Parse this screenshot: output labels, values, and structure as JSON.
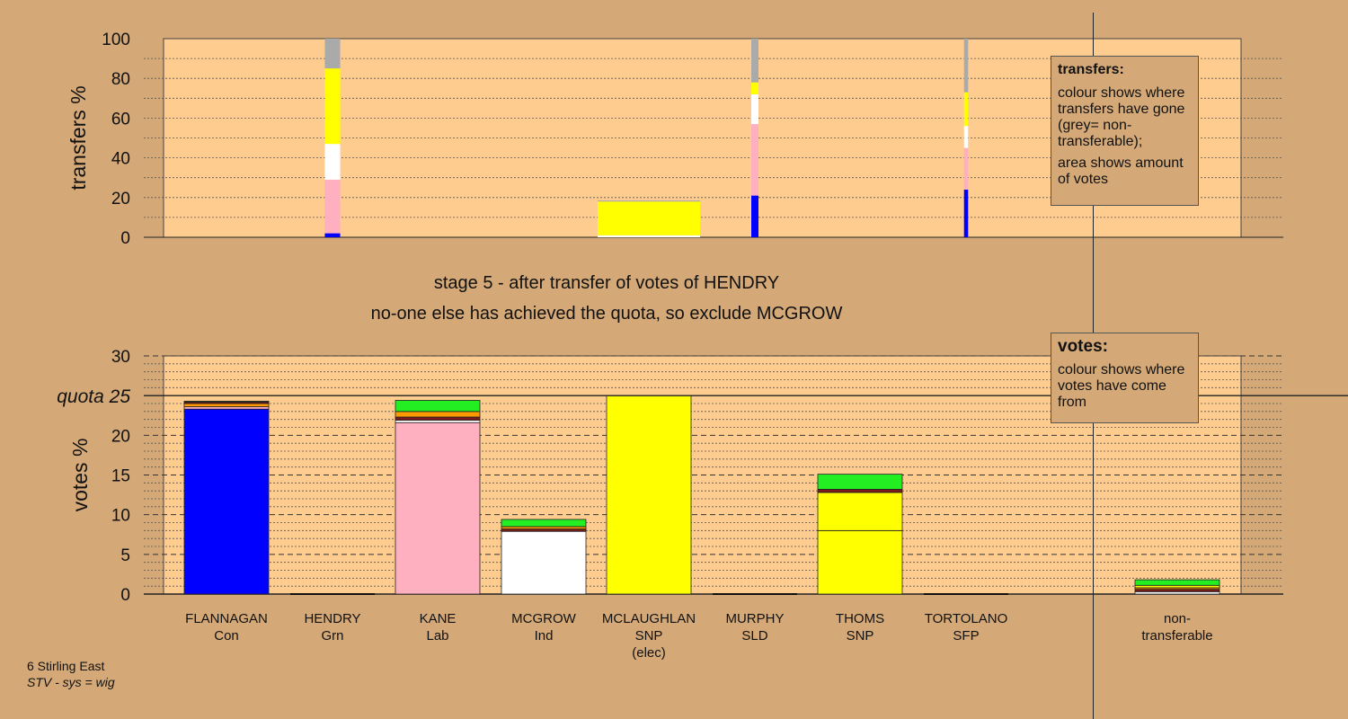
{
  "top_chart": {
    "ylabel": "transfers %",
    "yticks": [
      0,
      20,
      40,
      60,
      80,
      100
    ]
  },
  "bottom_chart": {
    "ylabel": "votes %",
    "yticks": [
      0,
      5,
      10,
      15,
      20,
      25,
      30
    ],
    "quota_label": "quota"
  },
  "titles": {
    "stage": "stage 5 - after transfer of votes of HENDRY",
    "action": "no-one else has achieved the quota, so exclude MCGROW"
  },
  "legend_transfers": {
    "heading": "transfers:",
    "line1": "colour shows where transfers have gone (grey= non-transferable);",
    "line2": "area shows amount of votes"
  },
  "legend_votes": {
    "heading": "votes:",
    "line1": "colour shows where votes have come from"
  },
  "candidates": [
    {
      "name": "FLANNAGAN",
      "party": "Con",
      "note": ""
    },
    {
      "name": "HENDRY",
      "party": "Grn",
      "note": ""
    },
    {
      "name": "KANE",
      "party": "Lab",
      "note": ""
    },
    {
      "name": "MCGROW",
      "party": "Ind",
      "note": ""
    },
    {
      "name": "MCLAUGHLAN",
      "party": "SNP",
      "note": "(elec)"
    },
    {
      "name": "MURPHY",
      "party": "SLD",
      "note": ""
    },
    {
      "name": "THOMS",
      "party": "SNP",
      "note": ""
    },
    {
      "name": "TORTOLANO",
      "party": "SFP",
      "note": ""
    },
    {
      "name": "non-",
      "party": "transferable",
      "note": ""
    }
  ],
  "footer": {
    "ward": "6 Stirling East",
    "system": "STV - sys = wig"
  },
  "colors": {
    "background": "#d4a977",
    "plot": "#ffcc90",
    "Con": "#0000ff",
    "Lab": "#ffb0c0",
    "Ind": "#ffffff",
    "SNP": "#ffff00",
    "Grn": "#22ee22",
    "SLD": "#ff9900",
    "SFP": "#7a1a1a",
    "nontransferable": "#aaaaaa"
  },
  "chart_data": [
    {
      "type": "bar",
      "title": "",
      "ylabel": "transfers %",
      "ylim": [
        0,
        100
      ],
      "grid": true,
      "series": [
        {
          "name": "FLANNAGAN",
          "values": [
            2,
            27,
            18,
            38,
            15
          ]
        },
        {
          "name": "KANE",
          "values": [
            0,
            0,
            0,
            0,
            0
          ]
        }
      ],
      "transfer_bars": [
        {
          "candidate_index": 1,
          "width_share": 0.15,
          "segments": [
            {
              "color": "Con",
              "value": 2
            },
            {
              "color": "Lab",
              "value": 27
            },
            {
              "color": "Ind",
              "value": 18
            },
            {
              "color": "SNP",
              "value": 38
            },
            {
              "color": "nontransferable",
              "value": 15
            }
          ]
        },
        {
          "candidate_index": 4,
          "width_share": 1.0,
          "segments": [
            {
              "color": "Ind",
              "value": 1
            },
            {
              "color": "SNP",
              "value": 17
            },
            {
              "color": "nontransferable",
              "value": 0.5
            }
          ]
        },
        {
          "candidate_index": 5,
          "width_share": 0.07,
          "segments": [
            {
              "color": "Con",
              "value": 21
            },
            {
              "color": "Lab",
              "value": 36
            },
            {
              "color": "Ind",
              "value": 15
            },
            {
              "color": "SNP",
              "value": 6
            },
            {
              "color": "nontransferable",
              "value": 22
            }
          ]
        },
        {
          "candidate_index": 7,
          "width_share": 0.04,
          "segments": [
            {
              "color": "Con",
              "value": 24
            },
            {
              "color": "Lab",
              "value": 21
            },
            {
              "color": "Ind",
              "value": 11
            },
            {
              "color": "SNP",
              "value": 17
            },
            {
              "color": "nontransferable",
              "value": 27
            }
          ]
        }
      ]
    },
    {
      "type": "bar",
      "title": "",
      "ylabel": "votes %",
      "ylim": [
        0,
        30
      ],
      "quota": 25,
      "grid": true,
      "categories": [
        "FLANNAGAN",
        "HENDRY",
        "KANE",
        "MCGROW",
        "MCLAUGHLAN",
        "MURPHY",
        "THOMS",
        "TORTOLANO",
        "non-transferable"
      ],
      "stacks": [
        [
          {
            "color": "Con",
            "value": 23.3
          },
          {
            "color": "Lab",
            "value": 0.3
          },
          {
            "color": "SLD",
            "value": 0.4
          },
          {
            "color": "SFP",
            "value": 0.2
          },
          {
            "color": "Grn",
            "value": 0.1
          }
        ],
        [],
        [
          {
            "color": "Lab",
            "value": 21.6
          },
          {
            "color": "Ind",
            "value": 0.3
          },
          {
            "color": "SFP",
            "value": 0.4
          },
          {
            "color": "SLD",
            "value": 0.7
          },
          {
            "color": "Grn",
            "value": 1.4
          }
        ],
        [
          {
            "color": "Ind",
            "value": 7.9
          },
          {
            "color": "SFP",
            "value": 0.3
          },
          {
            "color": "SLD",
            "value": 0.3
          },
          {
            "color": "Grn",
            "value": 0.9
          }
        ],
        [
          {
            "color": "SNP",
            "value": 25.0
          }
        ],
        [],
        [
          {
            "color": "SNP",
            "value": 8.0
          },
          {
            "color": "SNP",
            "value": 4.8
          },
          {
            "color": "SFP",
            "value": 0.4
          },
          {
            "color": "Grn",
            "value": 1.9
          }
        ],
        [],
        [
          {
            "color": "Ind",
            "value": 0.3
          },
          {
            "color": "SFP",
            "value": 0.3
          },
          {
            "color": "SLD",
            "value": 0.2
          },
          {
            "color": "SNP",
            "value": 0.3
          },
          {
            "color": "Grn",
            "value": 0.7
          }
        ]
      ]
    }
  ]
}
